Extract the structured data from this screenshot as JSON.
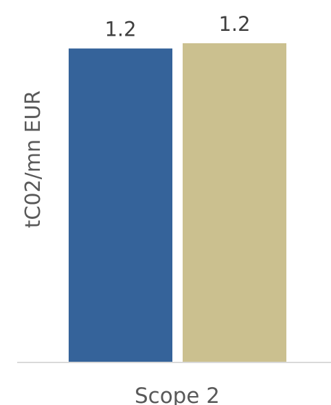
{
  "chart_data": {
    "type": "bar",
    "categories": [
      "Scope 2"
    ],
    "series": [
      {
        "values": [
          1.2
        ],
        "color": "#35639a",
        "data_label": "1.2"
      },
      {
        "values": [
          1.22
        ],
        "color": "#cbc08f",
        "data_label": "1.2"
      }
    ],
    "ylabel": "tC02/mn EUR",
    "ylim": [
      0,
      1.22
    ],
    "grid": false,
    "legend": "none",
    "axis_color": "#d9d9d9"
  }
}
